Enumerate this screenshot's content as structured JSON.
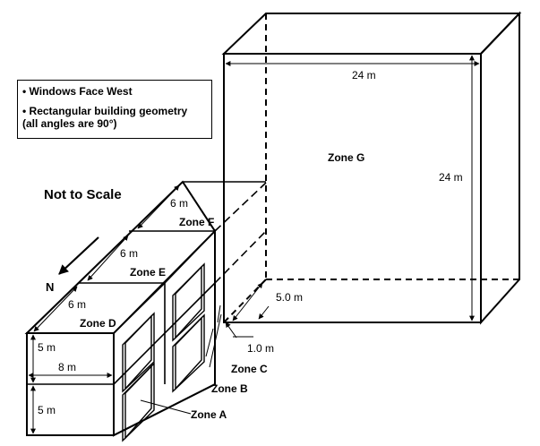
{
  "notes": {
    "line1": "• Windows Face West",
    "line2": "• Rectangular building geometry",
    "line3": "(all angles are 90°)"
  },
  "title": "Not to Scale",
  "north_label": "N",
  "zones": {
    "a": "Zone A",
    "b": "Zone B",
    "c": "Zone C",
    "d": "Zone D",
    "e": "Zone E",
    "f": "Zone F",
    "g": "Zone G"
  },
  "dimensions": {
    "g_width": "24 m",
    "g_height": "24 m",
    "gap_depth": "5.0 m",
    "gap_width": "1.0 m",
    "zone_depth_d": "6 m",
    "zone_depth_e": "6 m",
    "zone_depth_f": "6 m",
    "floor_height_upper": "5 m",
    "floor_height_lower": "5 m",
    "zone_width": "8 m"
  }
}
